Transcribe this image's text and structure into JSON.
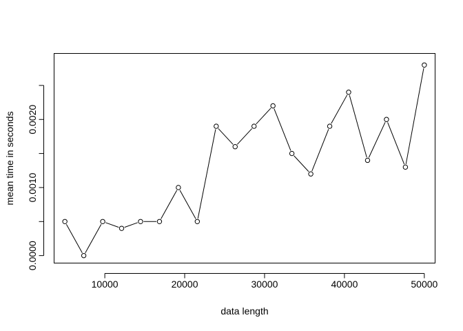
{
  "chart_data": {
    "type": "line",
    "title": "",
    "xlabel": "data length",
    "ylabel": "mean time in seconds",
    "xlim": [
      3650,
      51350
    ],
    "ylim": [
      -0.00011,
      0.00297
    ],
    "x_ticks": [
      10000,
      20000,
      30000,
      40000,
      50000
    ],
    "x_tick_labels": [
      "10000",
      "20000",
      "30000",
      "40000",
      "50000"
    ],
    "y_ticks": [
      0,
      0.0005,
      0.001,
      0.0015,
      0.002,
      0.0025
    ],
    "y_tick_labels": [
      "0.0000",
      "",
      "0.0010",
      "",
      "0.0020",
      ""
    ],
    "grid": false,
    "legend": "none",
    "marker": "open-circle",
    "series": [
      {
        "x": [
          5000,
          7368,
          9737,
          12105,
          14474,
          16842,
          19211,
          21579,
          23947,
          26316,
          28684,
          31053,
          33421,
          35789,
          38158,
          40526,
          42895,
          45263,
          47632,
          50000
        ],
        "values": [
          0.0005,
          0.0,
          0.0005,
          0.0004,
          0.0005,
          0.0005,
          0.001,
          0.0005,
          0.0019,
          0.0016,
          0.0019,
          0.0022,
          0.0015,
          0.0012,
          0.0019,
          0.0024,
          0.0014,
          0.002,
          0.0013,
          0.0028
        ]
      }
    ]
  }
}
